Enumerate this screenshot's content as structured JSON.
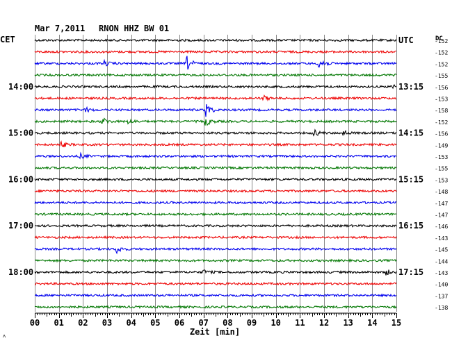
{
  "header": {
    "date": "Mar 7,2011",
    "station": "RNON HHZ BW 01",
    "left_tz": "CET",
    "right_tz": "UTC",
    "dc_label": "DC"
  },
  "chart_data": {
    "type": "line",
    "title": "Mar 7,2011   RNON HHZ BW 01",
    "xlabel": "Zeit [min]",
    "x_ticks": [
      "00",
      "01",
      "02",
      "03",
      "04",
      "05",
      "06",
      "07",
      "08",
      "09",
      "10",
      "11",
      "12",
      "13",
      "14",
      "15"
    ],
    "xlim": [
      0,
      15
    ],
    "grid": true,
    "left_time_labels": [
      {
        "row": 4,
        "label": "14:00"
      },
      {
        "row": 8,
        "label": "15:00"
      },
      {
        "row": 12,
        "label": "16:00"
      },
      {
        "row": 16,
        "label": "17:00"
      },
      {
        "row": 20,
        "label": "18:00"
      }
    ],
    "right_time_labels": [
      {
        "row": 0,
        "label": "UTC"
      },
      {
        "row": 4,
        "label": "13:15"
      },
      {
        "row": 8,
        "label": "14:15"
      },
      {
        "row": 12,
        "label": "15:15"
      },
      {
        "row": 16,
        "label": "16:15"
      },
      {
        "row": 20,
        "label": "17:15"
      }
    ],
    "trace_colors": [
      "#000000",
      "#ee0000",
      "#0000ee",
      "#007700"
    ],
    "traces": [
      {
        "dc": -152,
        "events": []
      },
      {
        "dc": -152,
        "events": []
      },
      {
        "dc": -152,
        "events": [
          {
            "t": 6.3,
            "amp": 1.0
          },
          {
            "t": 11.8,
            "amp": 1.0
          },
          {
            "t": 2.9,
            "amp": 0.3
          }
        ]
      },
      {
        "dc": -155,
        "events": []
      },
      {
        "dc": -156,
        "events": [
          {
            "t": 14.9,
            "amp": 0.4
          }
        ]
      },
      {
        "dc": -153,
        "events": [
          {
            "t": 9.5,
            "amp": 0.3
          }
        ]
      },
      {
        "dc": -158,
        "events": [
          {
            "t": 7.1,
            "amp": 1.0
          },
          {
            "t": 2.1,
            "amp": 0.3
          }
        ]
      },
      {
        "dc": -152,
        "events": [
          {
            "t": 2.8,
            "amp": 0.5
          },
          {
            "t": 7.1,
            "amp": 0.5
          },
          {
            "t": 3.9,
            "amp": 0.3
          }
        ]
      },
      {
        "dc": -156,
        "events": [
          {
            "t": 11.6,
            "amp": 0.4
          },
          {
            "t": 12.8,
            "amp": 0.3
          }
        ]
      },
      {
        "dc": -149,
        "events": [
          {
            "t": 1.1,
            "amp": 0.4
          }
        ]
      },
      {
        "dc": -153,
        "events": [
          {
            "t": 1.9,
            "amp": 0.3
          }
        ]
      },
      {
        "dc": -155,
        "events": []
      },
      {
        "dc": -153,
        "events": []
      },
      {
        "dc": -148,
        "events": []
      },
      {
        "dc": -147,
        "events": []
      },
      {
        "dc": -147,
        "events": []
      },
      {
        "dc": -146,
        "events": []
      },
      {
        "dc": -143,
        "events": []
      },
      {
        "dc": -145,
        "events": [
          {
            "t": 3.4,
            "amp": 0.5
          }
        ]
      },
      {
        "dc": -144,
        "events": []
      },
      {
        "dc": -143,
        "events": [
          {
            "t": 7.0,
            "amp": 0.3
          },
          {
            "t": 14.6,
            "amp": 0.3
          }
        ]
      },
      {
        "dc": -140,
        "events": []
      },
      {
        "dc": -137,
        "events": []
      },
      {
        "dc": -138,
        "events": []
      }
    ]
  }
}
